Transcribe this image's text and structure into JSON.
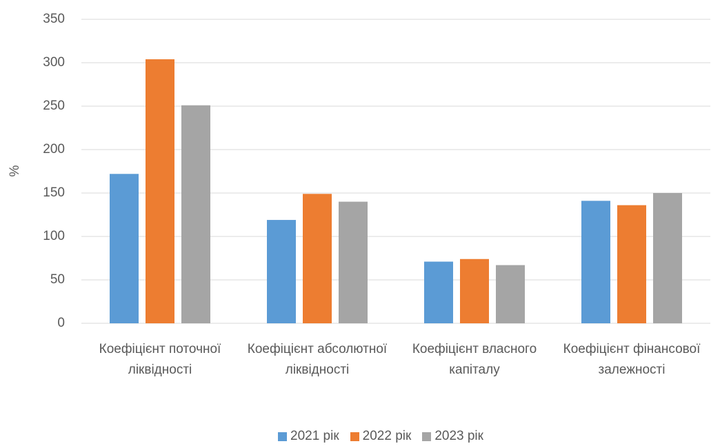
{
  "chart_data": {
    "type": "bar",
    "y_label": "%",
    "categories": [
      "Коефіцієнт поточної ліквідності",
      "Коефіцієнт абсолютної ліквідності",
      "Коефіцієнт власного капіталу",
      "Коефіцієнт фінансової залежності"
    ],
    "series": [
      {
        "name": "2021 рік",
        "color": "#5b9bd5",
        "values": [
          172,
          119,
          71,
          141
        ]
      },
      {
        "name": "2022 рік",
        "color": "#ed7d31",
        "values": [
          304,
          149,
          74,
          136
        ]
      },
      {
        "name": "2023 рік",
        "color": "#a5a5a5",
        "values": [
          251,
          140,
          67,
          150
        ]
      }
    ],
    "ylim": [
      0,
      350
    ],
    "yticks": [
      0,
      50,
      100,
      150,
      200,
      250,
      300,
      350
    ],
    "grid": true,
    "legend": "bottom"
  }
}
